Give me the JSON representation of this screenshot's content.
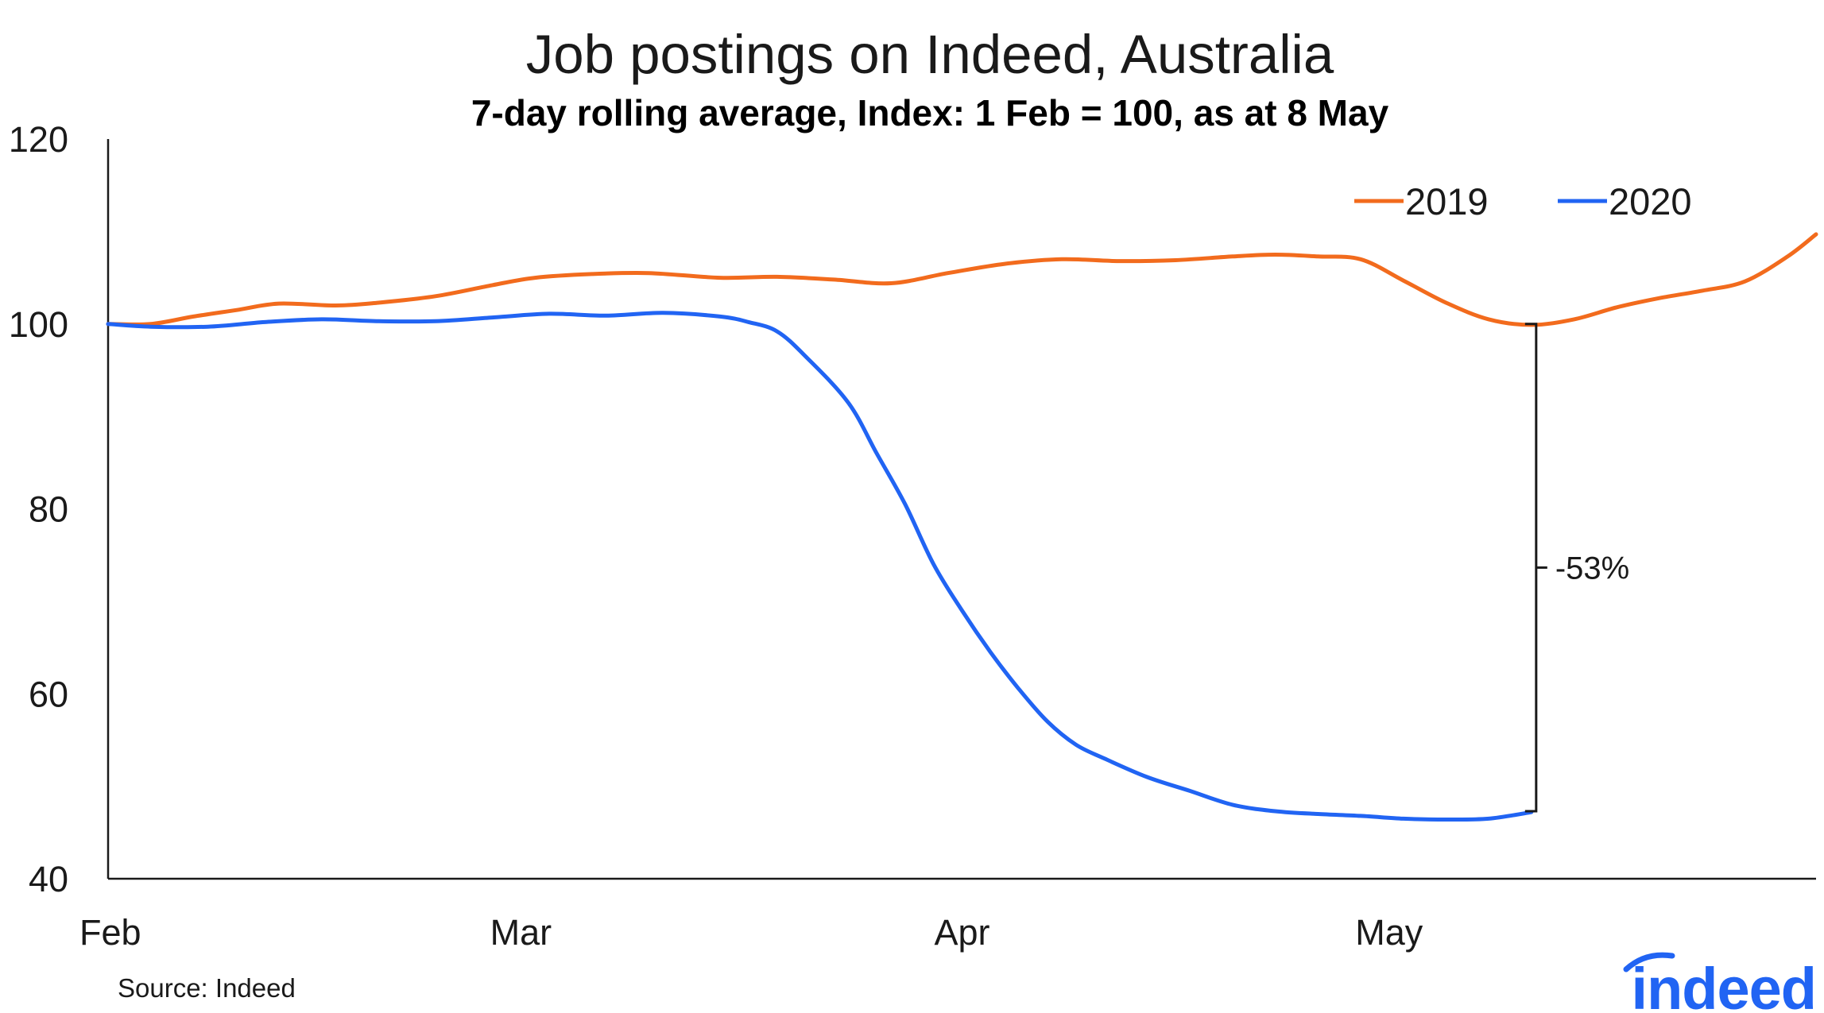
{
  "chart_data": {
    "type": "line",
    "title": "Job postings on Indeed, Australia",
    "subtitle": "7-day rolling average, Index: 1 Feb = 100, as at 8 May",
    "xlabel": "",
    "ylabel": "",
    "ylim": [
      40,
      120
    ],
    "yticks": [
      "40",
      "60",
      "80",
      "100",
      "120"
    ],
    "xticks": [
      {
        "label": "Feb",
        "date": "2020-02-01"
      },
      {
        "label": "Mar",
        "date": "2020-03-01"
      },
      {
        "label": "Apr",
        "date": "2020-04-01"
      },
      {
        "label": "May",
        "date": "2020-05-01"
      }
    ],
    "xlim": [
      "2020-02-01",
      "2020-05-31"
    ],
    "grid": false,
    "legend": {
      "position": "top-right"
    },
    "series": [
      {
        "name": "2019",
        "color": "#f26b1d",
        "points": [
          [
            "2020-02-01",
            100.0
          ],
          [
            "2020-02-04",
            100.0
          ],
          [
            "2020-02-07",
            100.8
          ],
          [
            "2020-02-10",
            101.5
          ],
          [
            "2020-02-13",
            102.2
          ],
          [
            "2020-02-17",
            102.0
          ],
          [
            "2020-02-20",
            102.3
          ],
          [
            "2020-02-24",
            103.0
          ],
          [
            "2020-02-28",
            104.2
          ],
          [
            "2020-03-02",
            105.0
          ],
          [
            "2020-03-06",
            105.4
          ],
          [
            "2020-03-10",
            105.5
          ],
          [
            "2020-03-15",
            105.0
          ],
          [
            "2020-03-19",
            105.1
          ],
          [
            "2020-03-23",
            104.8
          ],
          [
            "2020-03-27",
            104.4
          ],
          [
            "2020-03-31",
            105.5
          ],
          [
            "2020-04-04",
            106.5
          ],
          [
            "2020-04-08",
            107.0
          ],
          [
            "2020-04-12",
            106.8
          ],
          [
            "2020-04-16",
            106.9
          ],
          [
            "2020-04-20",
            107.3
          ],
          [
            "2020-04-23",
            107.5
          ],
          [
            "2020-04-26",
            107.3
          ],
          [
            "2020-04-29",
            107.0
          ],
          [
            "2020-05-02",
            104.7
          ],
          [
            "2020-05-05",
            102.3
          ],
          [
            "2020-05-08",
            100.5
          ],
          [
            "2020-05-11",
            99.9
          ],
          [
            "2020-05-14",
            100.5
          ],
          [
            "2020-05-17",
            101.8
          ],
          [
            "2020-05-20",
            102.8
          ],
          [
            "2020-05-23",
            103.6
          ],
          [
            "2020-05-26",
            104.6
          ],
          [
            "2020-05-29",
            107.3
          ],
          [
            "2020-05-31",
            109.7
          ]
        ]
      },
      {
        "name": "2020",
        "color": "#2164f3",
        "points": [
          [
            "2020-02-01",
            100.0
          ],
          [
            "2020-02-04",
            99.7
          ],
          [
            "2020-02-08",
            99.7
          ],
          [
            "2020-02-12",
            100.2
          ],
          [
            "2020-02-16",
            100.5
          ],
          [
            "2020-02-20",
            100.3
          ],
          [
            "2020-02-24",
            100.3
          ],
          [
            "2020-02-28",
            100.7
          ],
          [
            "2020-03-03",
            101.1
          ],
          [
            "2020-03-07",
            100.9
          ],
          [
            "2020-03-11",
            101.2
          ],
          [
            "2020-03-15",
            100.8
          ],
          [
            "2020-03-17",
            100.2
          ],
          [
            "2020-03-19",
            99.2
          ],
          [
            "2020-03-21",
            96.5
          ],
          [
            "2020-03-24",
            91.5
          ],
          [
            "2020-03-26",
            86.0
          ],
          [
            "2020-03-28",
            80.5
          ],
          [
            "2020-03-30",
            74.0
          ],
          [
            "2020-04-01",
            69.0
          ],
          [
            "2020-04-03",
            64.5
          ],
          [
            "2020-04-05",
            60.5
          ],
          [
            "2020-04-07",
            57.0
          ],
          [
            "2020-04-09",
            54.5
          ],
          [
            "2020-04-11",
            53.0
          ],
          [
            "2020-04-14",
            51.0
          ],
          [
            "2020-04-17",
            49.5
          ],
          [
            "2020-04-20",
            48.0
          ],
          [
            "2020-04-23",
            47.3
          ],
          [
            "2020-04-26",
            47.0
          ],
          [
            "2020-04-29",
            46.8
          ],
          [
            "2020-05-02",
            46.5
          ],
          [
            "2020-05-05",
            46.4
          ],
          [
            "2020-05-08",
            46.5
          ],
          [
            "2020-05-11",
            47.2
          ]
        ]
      }
    ],
    "annotation": {
      "label": "-53%",
      "x": "2020-05-11",
      "y_top": 100.0,
      "y_bottom": 47.3
    }
  },
  "source": "Source: Indeed",
  "logo": {
    "text": "indeed",
    "color": "#2164f3"
  }
}
